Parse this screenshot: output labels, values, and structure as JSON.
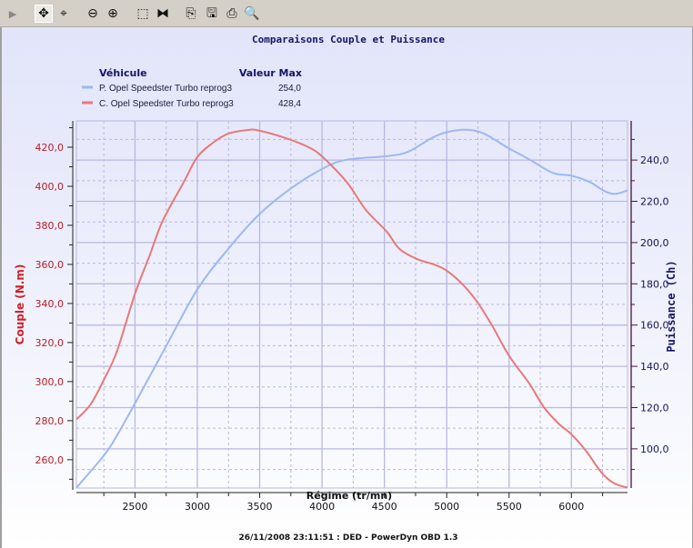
{
  "toolbar": {
    "items": [
      {
        "icon": "play-arrow-icon",
        "glyph": "▶"
      },
      {
        "icon": "pan-icon",
        "glyph": "✥",
        "selected": true
      },
      {
        "icon": "zoom-region-icon",
        "glyph": "⌖"
      },
      {
        "icon": "zoom-out-icon",
        "glyph": "⊖"
      },
      {
        "icon": "zoom-in-icon",
        "glyph": "⊕"
      },
      {
        "icon": "select-rectangle-icon",
        "glyph": "⬚"
      },
      {
        "icon": "split-icon",
        "glyph": "⧓"
      },
      {
        "icon": "copy-icon",
        "glyph": "⎘"
      },
      {
        "icon": "save-icon",
        "glyph": "🖫"
      },
      {
        "icon": "print-icon",
        "glyph": "⎙"
      },
      {
        "icon": "print-preview-icon",
        "glyph": "🔍"
      }
    ]
  },
  "chart_data": {
    "type": "line",
    "title": "Comparaisons Couple et Puissance",
    "xlabel": "Régime (tr/mn)",
    "ylabel_left": "Couple (N.m)",
    "ylabel_right": "Puissance (Ch)",
    "footer": "26/11/2008 23:11:51 : DED - PowerDyn OBD 1.3",
    "xlim": [
      2030,
      6450
    ],
    "ylim_left": [
      245.5,
      433.5
    ],
    "ylim_right": [
      81,
      259
    ],
    "x_ticks": [
      "2500",
      "3000",
      "3500",
      "4000",
      "4500",
      "5000",
      "5500",
      "6000"
    ],
    "left_ticks": [
      "260,0",
      "280,0",
      "300,0",
      "320,0",
      "340,0",
      "360,0",
      "380,0",
      "400,0",
      "420,0"
    ],
    "right_ticks": [
      "100,0",
      "120,0",
      "140,0",
      "160,0",
      "180,0",
      "200,0",
      "220,0",
      "240,0"
    ],
    "grid": true,
    "legend": {
      "position": "top-left",
      "header_vehicle": "Véhicule",
      "header_max": "Valeur Max"
    },
    "colors": {
      "torque": "#e87878",
      "power": "#9cb8f0",
      "grid": "#b8b8e0",
      "left_axis": "#b81c28",
      "right_axis": "#4a1040"
    },
    "series": [
      {
        "name": "P. Opel Speedster Turbo reprog3",
        "max": "254,0",
        "axis": "right",
        "color": "#9cb8f0",
        "points": [
          [
            2030,
            81.1
          ],
          [
            2155,
            89.9
          ],
          [
            2300,
            100.9
          ],
          [
            2495,
            121.5
          ],
          [
            2740,
            148.7
          ],
          [
            3000,
            177.3
          ],
          [
            3250,
            197.1
          ],
          [
            3490,
            213.3
          ],
          [
            3740,
            225.8
          ],
          [
            4010,
            236
          ],
          [
            4200,
            240.2
          ],
          [
            4520,
            241.9
          ],
          [
            4690,
            244
          ],
          [
            4880,
            250.7
          ],
          [
            5005,
            253.6
          ],
          [
            5150,
            254.7
          ],
          [
            5295,
            252.9
          ],
          [
            5500,
            245.6
          ],
          [
            5660,
            240.4
          ],
          [
            5850,
            233.8
          ],
          [
            6000,
            232.4
          ],
          [
            6145,
            229.4
          ],
          [
            6265,
            225
          ],
          [
            6350,
            223.6
          ],
          [
            6450,
            225.3
          ]
        ]
      },
      {
        "name": "C. Opel Speedster Turbo reprog3",
        "max": "428,4",
        "axis": "left",
        "color": "#e87878",
        "points": [
          [
            2030,
            280.6
          ],
          [
            2145,
            288.4
          ],
          [
            2255,
            301.5
          ],
          [
            2355,
            315.5
          ],
          [
            2500,
            345
          ],
          [
            2620,
            365
          ],
          [
            2720,
            382
          ],
          [
            2890,
            402
          ],
          [
            3000,
            415
          ],
          [
            3130,
            422.5
          ],
          [
            3250,
            427
          ],
          [
            3400,
            428.8
          ],
          [
            3490,
            428.6
          ],
          [
            3740,
            424
          ],
          [
            3910,
            419.4
          ],
          [
            4010,
            414.7
          ],
          [
            4200,
            402
          ],
          [
            4350,
            388
          ],
          [
            4520,
            376.7
          ],
          [
            4620,
            368
          ],
          [
            4760,
            362.8
          ],
          [
            4910,
            359.7
          ],
          [
            5005,
            356.6
          ],
          [
            5130,
            349.6
          ],
          [
            5250,
            340.3
          ],
          [
            5370,
            328
          ],
          [
            5500,
            313.2
          ],
          [
            5660,
            299.2
          ],
          [
            5780,
            286.8
          ],
          [
            5900,
            278.3
          ],
          [
            6000,
            273
          ],
          [
            6120,
            264.3
          ],
          [
            6240,
            253.5
          ],
          [
            6340,
            248
          ],
          [
            6450,
            245.7
          ]
        ]
      }
    ]
  }
}
